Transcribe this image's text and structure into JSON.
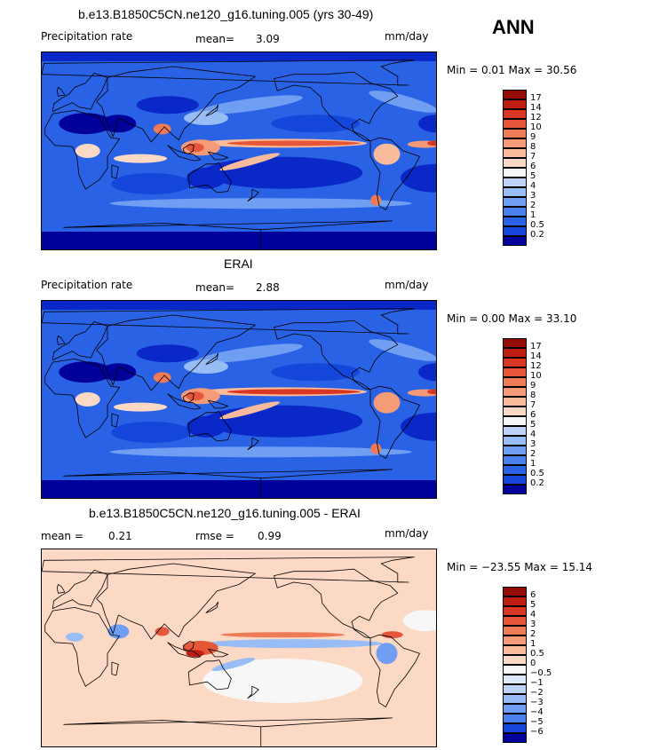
{
  "season": "ANN",
  "colors": {
    "blue_scale": [
      "#00009a",
      "#0a28c8",
      "#1446dc",
      "#2a62e6",
      "#4a80ee",
      "#709ef2",
      "#98bcf5",
      "#bdd3f8",
      "#dde8fb"
    ],
    "neutral": "#f7f7f7",
    "red_scale": [
      "#fcd9c4",
      "#f9bb9c",
      "#f59b78",
      "#ef7a56",
      "#e65639",
      "#d93724",
      "#c01e12",
      "#950b05"
    ],
    "coast": "#000000"
  },
  "panels": [
    {
      "title": "b.e13.B1850C5CN.ne120_g16.tuning.005 (yrs 30-49)",
      "variable": "Precipitation rate",
      "stat1_label": "mean=",
      "stat1_value": "3.09",
      "stat2_label": "",
      "stat2_value": "",
      "units": "mm/day",
      "range_text": "Min =   0.01 Max =  30.56",
      "colorbar_levels": [
        "17",
        "14",
        "12",
        "10",
        "9",
        "8",
        "7",
        "6",
        "5",
        "4",
        "3",
        "2",
        "1",
        "0.5",
        "0.2"
      ],
      "colorbar_colors": [
        "#950b05",
        "#c01e12",
        "#d93724",
        "#e65639",
        "#ef7a56",
        "#f59b78",
        "#f9bb9c",
        "#fcd9c4",
        "#f7f7f7",
        "#bdd3f8",
        "#98bcf5",
        "#709ef2",
        "#4a80ee",
        "#2a62e6",
        "#1446dc",
        "#00009a"
      ],
      "field": "model"
    },
    {
      "title": "ERAI",
      "variable": "Precipitation rate",
      "stat1_label": "mean=",
      "stat1_value": "2.88",
      "stat2_label": "",
      "stat2_value": "",
      "units": "mm/day",
      "range_text": "Min =   0.00 Max =  33.10",
      "colorbar_levels": [
        "17",
        "14",
        "12",
        "10",
        "9",
        "8",
        "7",
        "6",
        "5",
        "4",
        "3",
        "2",
        "1",
        "0.5",
        "0.2"
      ],
      "colorbar_colors": [
        "#950b05",
        "#c01e12",
        "#d93724",
        "#e65639",
        "#ef7a56",
        "#f59b78",
        "#f9bb9c",
        "#fcd9c4",
        "#f7f7f7",
        "#bdd3f8",
        "#98bcf5",
        "#709ef2",
        "#4a80ee",
        "#2a62e6",
        "#1446dc",
        "#00009a"
      ],
      "field": "obs"
    },
    {
      "title": "b.e13.B1850C5CN.ne120_g16.tuning.005 - ERAI",
      "variable": "",
      "stat1_label": "mean =",
      "stat1_value": "0.21",
      "stat2_label": "rmse =",
      "stat2_value": "0.99",
      "units": "mm/day",
      "range_text": "Min = −23.55 Max =  15.14",
      "colorbar_levels": [
        "6",
        "5",
        "4",
        "3",
        "2",
        "1",
        "0.5",
        "0",
        "−0.5",
        "−1",
        "−2",
        "−3",
        "−4",
        "−5",
        "−6"
      ],
      "colorbar_colors": [
        "#950b05",
        "#c01e12",
        "#d93724",
        "#e65639",
        "#ef7a56",
        "#f59b78",
        "#f9bb9c",
        "#fcd9c4",
        "#f7f7f7",
        "#dde8fb",
        "#bdd3f8",
        "#98bcf5",
        "#709ef2",
        "#4a80ee",
        "#1446dc",
        "#00009a"
      ],
      "field": "diff"
    }
  ],
  "chart_data": [
    {
      "type": "heatmap",
      "title": "b.e13.B1850C5CN.ne120_g16.tuning.005 (yrs 30-49)",
      "variable": "Precipitation rate",
      "units": "mm/day",
      "mean": 3.09,
      "min": 0.01,
      "max": 30.56,
      "levels": [
        0.2,
        0.5,
        1,
        2,
        3,
        4,
        5,
        6,
        7,
        8,
        9,
        10,
        12,
        14,
        17
      ]
    },
    {
      "type": "heatmap",
      "title": "ERAI",
      "variable": "Precipitation rate",
      "units": "mm/day",
      "mean": 2.88,
      "min": 0.0,
      "max": 33.1,
      "levels": [
        0.2,
        0.5,
        1,
        2,
        3,
        4,
        5,
        6,
        7,
        8,
        9,
        10,
        12,
        14,
        17
      ]
    },
    {
      "type": "heatmap",
      "title": "b.e13.B1850C5CN.ne120_g16.tuning.005 - ERAI",
      "units": "mm/day",
      "mean": 0.21,
      "rmse": 0.99,
      "min": -23.55,
      "max": 15.14,
      "levels": [
        -6,
        -5,
        -4,
        -3,
        -2,
        -1,
        -0.5,
        0,
        0.5,
        1,
        2,
        3,
        4,
        5,
        6
      ]
    }
  ]
}
